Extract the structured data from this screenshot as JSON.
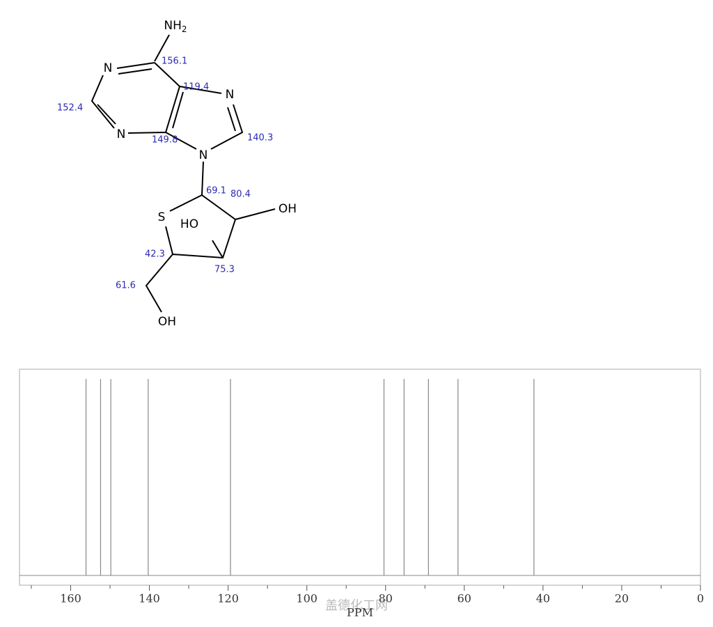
{
  "chart_data": {
    "type": "spectrum",
    "peaks": [
      156.1,
      152.4,
      149.8,
      140.3,
      119.4,
      80.4,
      75.3,
      69.1,
      61.6,
      42.3
    ],
    "xlim": [
      173,
      0
    ],
    "xticks": [
      160,
      140,
      120,
      100,
      80,
      60,
      40,
      20,
      0
    ],
    "xminorticks": [
      170,
      150,
      130,
      110,
      90,
      70,
      50,
      30,
      10
    ],
    "xlabel": "PPM",
    "color": "#888888",
    "watermark": "盖德化工网"
  },
  "structure": {
    "atoms": {
      "amine_n": "NH",
      "amine_sub": "2",
      "n1": "N",
      "n3": "N",
      "n7": "N",
      "n9": "N",
      "s": "S",
      "oh2": "OH",
      "oh3": "HO",
      "oh5": "OH"
    }
  }
}
